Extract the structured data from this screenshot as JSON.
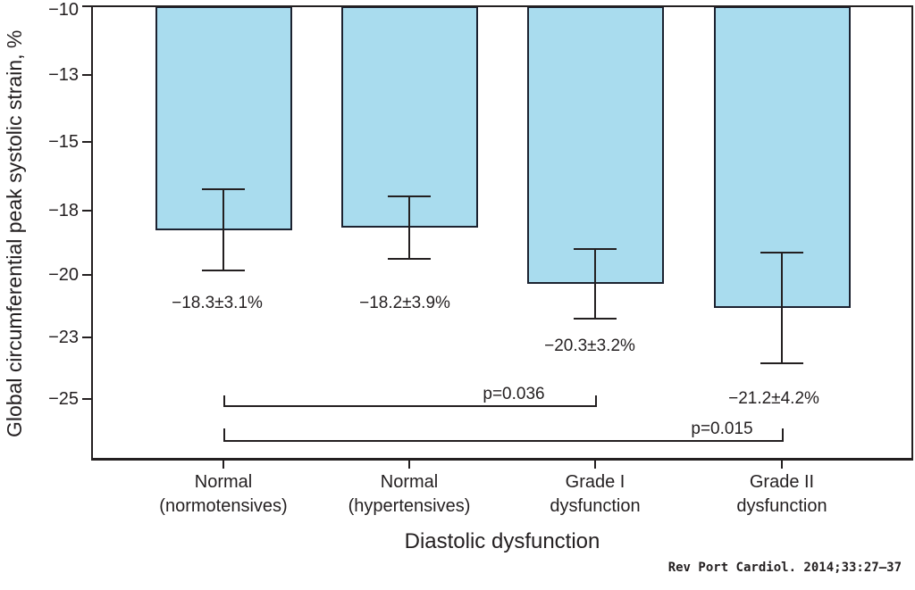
{
  "figure": {
    "citation": "Rev Port Cardiol. 2014;33:27–37"
  },
  "chart_data": {
    "type": "bar",
    "title": "",
    "ylabel": "Global circumferential peak systolic strain, %",
    "xlabel": "Diastolic dysfunction",
    "categories": [
      "Normal (normotensives)",
      "Normal (hypertensives)",
      "Grade I dysfunction",
      "Grade II dysfunction"
    ],
    "category_lines": [
      [
        "Normal",
        "(normotensives)"
      ],
      [
        "Normal",
        "(hypertensives)"
      ],
      [
        "Grade I",
        "dysfunction"
      ],
      [
        "Grade II",
        "dysfunction"
      ]
    ],
    "values": [
      -18.3,
      -18.2,
      -20.3,
      -21.2
    ],
    "sd": [
      3.1,
      3.9,
      3.2,
      4.2
    ],
    "value_labels": [
      "−18.3±3.1%",
      "−18.2±3.9%",
      "−20.3±3.2%",
      "−21.2±4.2%"
    ],
    "whisker_display": [
      1.5,
      1.16,
      1.3,
      2.05
    ],
    "y_ticks": [
      "−10",
      "−13",
      "−15",
      "−18",
      "−20",
      "−23",
      "−25"
    ],
    "y_axis": {
      "top_value": -10,
      "bottom_value": -27.3,
      "direction": "negative-down",
      "bars_clipped_at_top": true
    },
    "grid": false,
    "legend": false,
    "significance": [
      {
        "label": "p=0.036",
        "from": 0,
        "to": 2
      },
      {
        "label": "p=0.015",
        "from": 0,
        "to": 3
      }
    ],
    "colors": {
      "bar_fill": "#a9dcee",
      "bar_border": "#1c2230",
      "line": "#231f20",
      "text": "#231f20",
      "background": "#ffffff"
    }
  }
}
